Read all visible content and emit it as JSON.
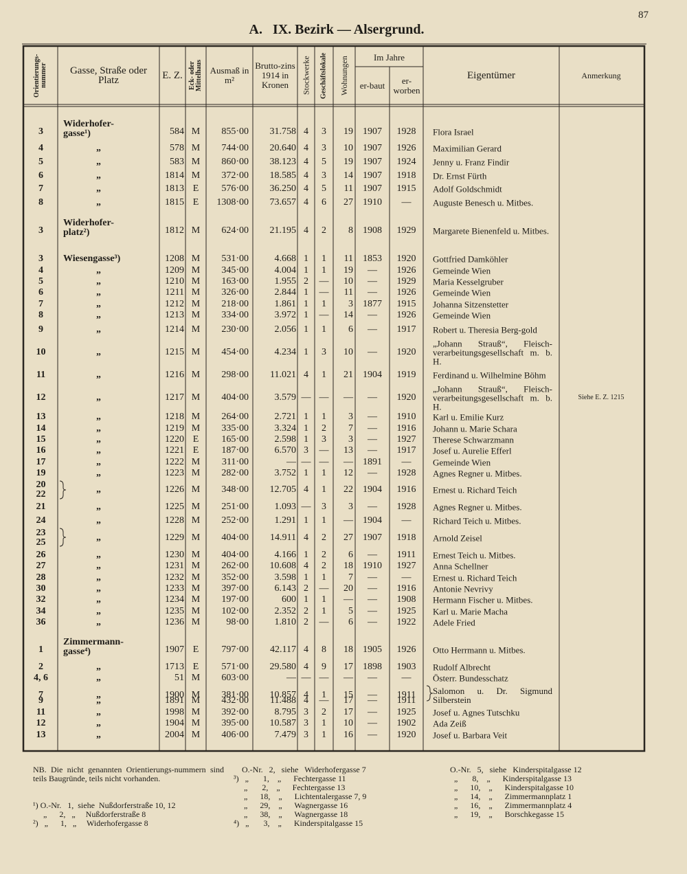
{
  "page_number": "87",
  "title": "A.   IX. Bezirk — Alsergrund.",
  "header": {
    "nr": "Orientierungs-nummer",
    "street": "Gasse, Straße oder Platz",
    "ez": "E. Z.",
    "mark": "Eck- oder Mittelhaus",
    "area": "Ausmaß in m²",
    "zins": "Brutto-zins 1914 in Kronen",
    "stock": "Stockwerke",
    "gesch": "Geschäftslokale",
    "wohn": "Wohnungen",
    "jahre": "Im Jahre",
    "erbaut": "er-baut",
    "erworben": "er-worben",
    "owner": "Eigentümer",
    "note": "Anmerkung"
  },
  "rows": [
    {
      "nr": "3",
      "street": "Widerhofer-\ngasse¹)",
      "ez": "584",
      "mark": "M",
      "area": "855·00",
      "zins": "31.758",
      "stock": "4",
      "gesch": "3",
      "wohn": "19",
      "erbaut": "1907",
      "erworben": "1928",
      "owner": "Flora Israel"
    },
    {
      "nr": "4",
      "street": "„",
      "ez": "578",
      "mark": "M",
      "area": "744·00",
      "zins": "20.640",
      "stock": "4",
      "gesch": "3",
      "wohn": "10",
      "erbaut": "1907",
      "erworben": "1926",
      "owner": "Maximilian Gerard"
    },
    {
      "nr": "5",
      "street": "„",
      "ez": "583",
      "mark": "M",
      "area": "860·00",
      "zins": "38.123",
      "stock": "4",
      "gesch": "5",
      "wohn": "19",
      "erbaut": "1907",
      "erworben": "1924",
      "owner": "Jenny u. Franz Findir"
    },
    {
      "nr": "6",
      "street": "„",
      "ez": "1814",
      "mark": "M",
      "area": "372·00",
      "zins": "18.585",
      "stock": "4",
      "gesch": "3",
      "wohn": "14",
      "erbaut": "1907",
      "erworben": "1918",
      "owner": "Dr. Ernst Fürth"
    },
    {
      "nr": "7",
      "street": "„",
      "ez": "1813",
      "mark": "E",
      "area": "576·00",
      "zins": "36.250",
      "stock": "4",
      "gesch": "5",
      "wohn": "11",
      "erbaut": "1907",
      "erworben": "1915",
      "owner": "Adolf Goldschmidt"
    },
    {
      "nr": "8",
      "street": "„",
      "ez": "1815",
      "mark": "E",
      "area": "1308·00",
      "zins": "73.657",
      "stock": "4",
      "gesch": "6",
      "wohn": "27",
      "erbaut": "1910",
      "erworben": "—",
      "owner": "Auguste Benesch u. Mitbes."
    },
    {
      "nr": "3",
      "street": "Widerhofer-\nplatz²)",
      "ez": "1812",
      "mark": "M",
      "area": "624·00",
      "zins": "21.195",
      "stock": "4",
      "gesch": "2",
      "wohn": "8",
      "erbaut": "1908",
      "erworben": "1929",
      "owner": "Margarete Bienenfeld u. Mitbes."
    },
    {
      "nr": "3",
      "street": "Wiesengasse³)",
      "ez": "1208",
      "mark": "M",
      "area": "531·00",
      "zins": "4.668",
      "stock": "1",
      "gesch": "1",
      "wohn": "11",
      "erbaut": "1853",
      "erworben": "1920",
      "owner": "Gottfried Damköhler"
    },
    {
      "nr": "4",
      "street": "„",
      "ez": "1209",
      "mark": "M",
      "area": "345·00",
      "zins": "4.004",
      "stock": "1",
      "gesch": "1",
      "wohn": "19",
      "erbaut": "—",
      "erworben": "1926",
      "owner": "Gemeinde Wien"
    },
    {
      "nr": "5",
      "street": "„",
      "ez": "1210",
      "mark": "M",
      "area": "163·00",
      "zins": "1.955",
      "stock": "2",
      "gesch": "—",
      "wohn": "10",
      "erbaut": "—",
      "erworben": "1929",
      "owner": "Maria Kesselgruber"
    },
    {
      "nr": "6",
      "street": "„",
      "ez": "1211",
      "mark": "M",
      "area": "326·00",
      "zins": "2.844",
      "stock": "1",
      "gesch": "—",
      "wohn": "11",
      "erbaut": "—",
      "erworben": "1926",
      "owner": "Gemeinde Wien"
    },
    {
      "nr": "7",
      "street": "„",
      "ez": "1212",
      "mark": "M",
      "area": "218·00",
      "zins": "1.861",
      "stock": "1",
      "gesch": "1",
      "wohn": "3",
      "erbaut": "1877",
      "erworben": "1915",
      "owner": "Johanna Sitzenstetter"
    },
    {
      "nr": "8",
      "street": "„",
      "ez": "1213",
      "mark": "M",
      "area": "334·00",
      "zins": "3.972",
      "stock": "1",
      "gesch": "—",
      "wohn": "14",
      "erbaut": "—",
      "erworben": "1926",
      "owner": "Gemeinde Wien"
    },
    {
      "nr": "9",
      "street": "„",
      "ez": "1214",
      "mark": "M",
      "area": "230·00",
      "zins": "2.056",
      "stock": "1",
      "gesch": "1",
      "wohn": "6",
      "erbaut": "—",
      "erworben": "1917",
      "owner": "Robert u. Theresia Berg-gold"
    },
    {
      "nr": "10",
      "street": "„",
      "ez": "1215",
      "mark": "M",
      "area": "454·00",
      "zins": "4.234",
      "stock": "1",
      "gesch": "3",
      "wohn": "10",
      "erbaut": "—",
      "erworben": "1920",
      "owner": "„Johann Strauß“, Fleisch-verarbeitungsgesellschaft m. b. H."
    },
    {
      "nr": "11",
      "street": "„",
      "ez": "1216",
      "mark": "M",
      "area": "298·00",
      "zins": "11.021",
      "stock": "4",
      "gesch": "1",
      "wohn": "21",
      "erbaut": "1904",
      "erworben": "1919",
      "owner": "Ferdinand u. Wilhelmine Böhm"
    },
    {
      "nr": "12",
      "street": "„",
      "ez": "1217",
      "mark": "M",
      "area": "404·00",
      "zins": "3.579",
      "stock": "—",
      "gesch": "—",
      "wohn": "—",
      "erbaut": "—",
      "erworben": "1920",
      "owner": "„Johann Strauß“, Fleisch-verarbeitungsgesellschaft m. b. H.",
      "note": "Siehe E. Z. 1215"
    },
    {
      "nr": "13",
      "street": "„",
      "ez": "1218",
      "mark": "M",
      "area": "264·00",
      "zins": "2.721",
      "stock": "1",
      "gesch": "1",
      "wohn": "3",
      "erbaut": "—",
      "erworben": "1910",
      "owner": "Karl u. Emilie Kurz"
    },
    {
      "nr": "14",
      "street": "„",
      "ez": "1219",
      "mark": "M",
      "area": "335·00",
      "zins": "3.324",
      "stock": "1",
      "gesch": "2",
      "wohn": "7",
      "erbaut": "—",
      "erworben": "1916",
      "owner": "Johann u. Marie Schara"
    },
    {
      "nr": "15",
      "street": "„",
      "ez": "1220",
      "mark": "E",
      "area": "165·00",
      "zins": "2.598",
      "stock": "1",
      "gesch": "3",
      "wohn": "3",
      "erbaut": "—",
      "erworben": "1927",
      "owner": "Therese Schwarzmann"
    },
    {
      "nr": "16",
      "street": "„",
      "ez": "1221",
      "mark": "E",
      "area": "187·00",
      "zins": "6.570",
      "stock": "3",
      "gesch": "—",
      "wohn": "13",
      "erbaut": "—",
      "erworben": "1917",
      "owner": "Josef u. Aurelie Efferl"
    },
    {
      "nr": "17",
      "street": "„",
      "ez": "1222",
      "mark": "M",
      "area": "311·00",
      "zins": "—",
      "stock": "—",
      "gesch": "—",
      "wohn": "—",
      "erbaut": "1891",
      "erworben": "—",
      "owner": "Gemeinde Wien"
    },
    {
      "nr": "19",
      "street": "„",
      "ez": "1223",
      "mark": "M",
      "area": "282·00",
      "zins": "3.752",
      "stock": "1",
      "gesch": "1",
      "wohn": "12",
      "erbaut": "—",
      "erworben": "1928",
      "owner": "Agnes Regner u. Mitbes."
    },
    {
      "nr": "20\n22",
      "street": "„",
      "ez": "1226",
      "mark": "M",
      "area": "348·00",
      "zins": "12.705",
      "stock": "4",
      "gesch": "1",
      "wohn": "22",
      "erbaut": "1904",
      "erworben": "1916",
      "owner": "Ernest u. Richard Teich"
    },
    {
      "nr": "21",
      "street": "„",
      "ez": "1225",
      "mark": "M",
      "area": "251·00",
      "zins": "1.093",
      "stock": "—",
      "gesch": "3",
      "wohn": "3",
      "erbaut": "—",
      "erworben": "1928",
      "owner": "Agnes Regner u. Mitbes."
    },
    {
      "nr": "24",
      "street": "„",
      "ez": "1228",
      "mark": "M",
      "area": "252·00",
      "zins": "1.291",
      "stock": "1",
      "gesch": "1",
      "wohn": "—",
      "erbaut": "1904",
      "erworben": "—",
      "owner": "Richard Teich u. Mitbes."
    },
    {
      "nr": "23\n25",
      "street": "„",
      "ez": "1229",
      "mark": "M",
      "area": "404·00",
      "zins": "14.911",
      "stock": "4",
      "gesch": "2",
      "wohn": "27",
      "erbaut": "1907",
      "erworben": "1918",
      "owner": "Arnold Zeisel"
    },
    {
      "nr": "26",
      "street": "„",
      "ez": "1230",
      "mark": "M",
      "area": "404·00",
      "zins": "4.166",
      "stock": "1",
      "gesch": "2",
      "wohn": "6",
      "erbaut": "—",
      "erworben": "1911",
      "owner": "Ernest Teich u. Mitbes."
    },
    {
      "nr": "27",
      "street": "„",
      "ez": "1231",
      "mark": "M",
      "area": "262·00",
      "zins": "10.608",
      "stock": "4",
      "gesch": "2",
      "wohn": "18",
      "erbaut": "1910",
      "erworben": "1927",
      "owner": "Anna Schellner"
    },
    {
      "nr": "28",
      "street": "„",
      "ez": "1232",
      "mark": "M",
      "area": "352·00",
      "zins": "3.598",
      "stock": "1",
      "gesch": "1",
      "wohn": "7",
      "erbaut": "—",
      "erworben": "—",
      "owner": "Ernest u. Richard Teich"
    },
    {
      "nr": "30",
      "street": "„",
      "ez": "1233",
      "mark": "M",
      "area": "397·00",
      "zins": "6.143",
      "stock": "2",
      "gesch": "—",
      "wohn": "20",
      "erbaut": "—",
      "erworben": "1916",
      "owner": "Antonie Nevrivy"
    },
    {
      "nr": "32",
      "street": "„",
      "ez": "1234",
      "mark": "M",
      "area": "197·00",
      "zins": "600",
      "stock": "1",
      "gesch": "1",
      "wohn": "—",
      "erbaut": "—",
      "erworben": "1908",
      "owner": "Hermann Fischer u. Mitbes."
    },
    {
      "nr": "34",
      "street": "„",
      "ez": "1235",
      "mark": "M",
      "area": "102·00",
      "zins": "2.352",
      "stock": "2",
      "gesch": "1",
      "wohn": "5",
      "erbaut": "—",
      "erworben": "1925",
      "owner": "Karl u. Marie Macha"
    },
    {
      "nr": "36",
      "street": "„",
      "ez": "1236",
      "mark": "M",
      "area": "98·00",
      "zins": "1.810",
      "stock": "2",
      "gesch": "—",
      "wohn": "6",
      "erbaut": "—",
      "erworben": "1922",
      "owner": "Adele Fried"
    },
    {
      "nr": "1",
      "street": "Zimmermann-\ngasse⁴)",
      "ez": "1907",
      "mark": "E",
      "area": "797·00",
      "zins": "42.117",
      "stock": "4",
      "gesch": "8",
      "wohn": "18",
      "erbaut": "1905",
      "erworben": "1926",
      "owner": "Otto Herrmann u. Mitbes."
    },
    {
      "nr": "2",
      "street": "„",
      "ez": "1713",
      "mark": "E",
      "area": "571·00",
      "zins": "29.580",
      "stock": "4",
      "gesch": "9",
      "wohn": "17",
      "erbaut": "1898",
      "erworben": "1903",
      "owner": "Rudolf Albrecht"
    },
    {
      "nr": "4, 6",
      "street": "„",
      "ez": "51",
      "mark": "M",
      "area": "603·00",
      "zins": "—",
      "stock": "—",
      "gesch": "—",
      "wohn": "—",
      "erbaut": "—",
      "erworben": "—",
      "owner": "Österr. Bundesschatz"
    },
    {
      "nr": "7",
      "street": "„",
      "ez": "1900",
      "mark": "M",
      "area": "381·00",
      "zins": "10.857",
      "stock": "4",
      "gesch": "1",
      "wohn": "15",
      "erbaut": "—",
      "erworben": "1911",
      "owner": "Salomon u. Dr. Sigmund Silberstein"
    },
    {
      "nr": "9",
      "street": "„",
      "ez": "1891",
      "mark": "M",
      "area": "432·00",
      "zins": "11.488",
      "stock": "4",
      "gesch": "—",
      "wohn": "17",
      "erbaut": "—",
      "erworben": "1911"
    },
    {
      "nr": "11",
      "street": "„",
      "ez": "1998",
      "mark": "M",
      "area": "392·00",
      "zins": "8.795",
      "stock": "3",
      "gesch": "2",
      "wohn": "17",
      "erbaut": "—",
      "erworben": "1925",
      "owner": "Josef u. Agnes Tutschku"
    },
    {
      "nr": "12",
      "street": "„",
      "ez": "1904",
      "mark": "M",
      "area": "395·00",
      "zins": "10.587",
      "stock": "3",
      "gesch": "1",
      "wohn": "10",
      "erbaut": "—",
      "erworben": "1902",
      "owner": "Ada Zeiß"
    },
    {
      "nr": "13",
      "street": "„",
      "ez": "2004",
      "mark": "M",
      "area": "406·00",
      "zins": "7.479",
      "stock": "3",
      "gesch": "1",
      "wohn": "16",
      "erbaut": "—",
      "erworben": "1920",
      "owner": "Josef u. Barbara Veit"
    }
  ],
  "footnotes": {
    "nb": "NB. Die nicht genannten Orientierungs-nummern sind teils Baugründe, teils nicht vorhanden.",
    "left": [
      "¹) O.-Nr.   1,  siehe  Nußdorferstraße 10, 12",
      "     „      2,   „     Nußdorferstraße 8",
      "²)   „      1,   „     Widerhofergasse 8"
    ],
    "middle": [
      "    O.-Nr.   2,   siehe   Widerhofergasse 7",
      "³)   „       1,    „      Fechtergasse 11",
      "     „       2,    „      Fechtergasse 13",
      "     „      18,    „      Lichtentalergasse 7, 9",
      "     „      29,    „      Wagnergasse 16",
      "     „      38,    „      Wagnergasse 18",
      "⁴)   „       3,    „      Kinderspitalgasse 15"
    ],
    "right": [
      "O.-Nr.   5,   siehe   Kinderspitalgasse 12",
      "  „       8,    „      Kinderspitalgasse 13",
      "  „      10,    „      Kinderspitalgasse 10",
      "  „      14,    „      Zimmermannplatz 1",
      "  „      16,    „      Zimmermannplatz 4",
      "  „      19,    „      Borschkegasse 15"
    ]
  }
}
